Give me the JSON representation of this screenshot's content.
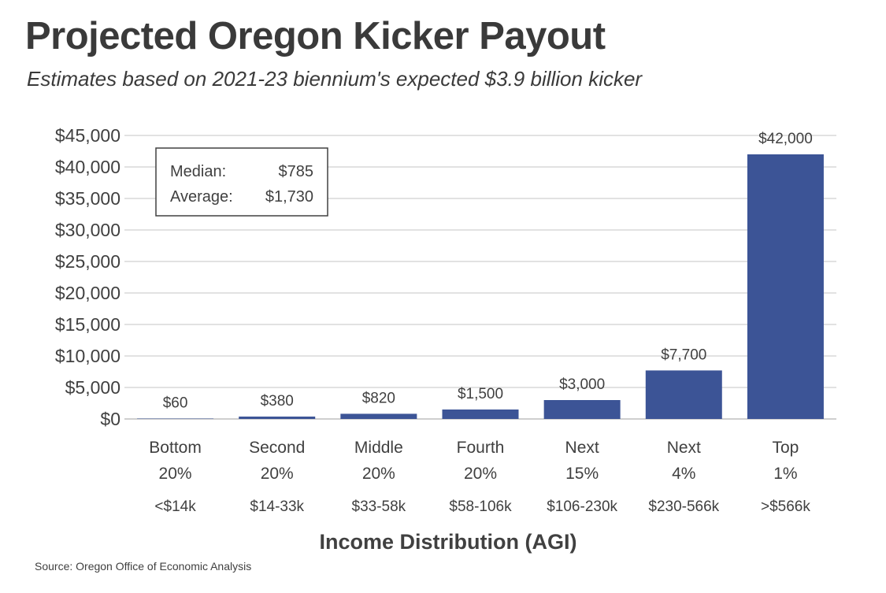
{
  "title": "Projected Oregon Kicker Payout",
  "subtitle": "Estimates based on 2021-23 biennium's expected $3.9 billion kicker",
  "source": "Source: Oregon Office of Economic Analysis",
  "colors": {
    "bar": "#3c5496",
    "grid": "#d9d9d9",
    "text": "#404040"
  },
  "chart_data": {
    "type": "bar",
    "title": "Projected Oregon Kicker Payout",
    "subtitle": "Estimates based on 2021-23 biennium's expected $3.9 billion kicker",
    "xlabel": "Income Distribution (AGI)",
    "ylabel": "",
    "ylim": [
      0,
      45000
    ],
    "yticks": [
      0,
      5000,
      10000,
      15000,
      20000,
      25000,
      30000,
      35000,
      40000,
      45000
    ],
    "ytick_labels": [
      "$0",
      "$5,000",
      "$10,000",
      "$15,000",
      "$20,000",
      "$25,000",
      "$30,000",
      "$35,000",
      "$40,000",
      "$45,000"
    ],
    "grid": true,
    "legend": false,
    "categories": [
      {
        "group": "Bottom",
        "share": "20%",
        "range": "<$14k"
      },
      {
        "group": "Second",
        "share": "20%",
        "range": "$14-33k"
      },
      {
        "group": "Middle",
        "share": "20%",
        "range": "$33-58k"
      },
      {
        "group": "Fourth",
        "share": "20%",
        "range": "$58-106k"
      },
      {
        "group": "Next",
        "share": "15%",
        "range": "$106-230k"
      },
      {
        "group": "Next",
        "share": "4%",
        "range": "$230-566k"
      },
      {
        "group": "Top",
        "share": "1%",
        "range": ">$566k"
      }
    ],
    "values": [
      60,
      380,
      820,
      1500,
      3000,
      7700,
      42000
    ],
    "data_labels": [
      "$60",
      "$380",
      "$820",
      "$1,500",
      "$3,000",
      "$7,700",
      "$42,000"
    ],
    "annotation": {
      "median_label": "Median:",
      "median_value": "$785",
      "average_label": "Average:",
      "average_value": "$1,730"
    }
  }
}
